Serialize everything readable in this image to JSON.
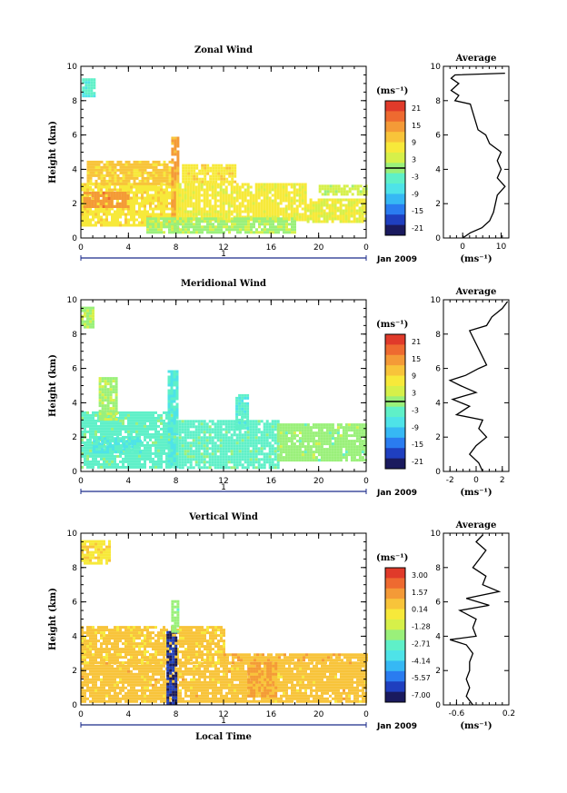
{
  "panels": [
    {
      "id": "zonal",
      "title": "Zonal Wind",
      "ylabel": "Height (km)",
      "xticks": [
        "0",
        "4",
        "8",
        "12",
        "16",
        "20",
        "0"
      ],
      "yticks": [
        "0",
        "2",
        "4",
        "6",
        "8",
        "10"
      ],
      "date_tick": "1",
      "date_label": "Jan 2009",
      "unit": "(ms⁻¹)",
      "colorbar_ticks": [
        "21",
        "15",
        "9",
        "3",
        "-3",
        "-9",
        "-15",
        "-21"
      ],
      "avg_title": "Average",
      "avg_xticks": [
        "0",
        "10"
      ],
      "avg_xlabel": "(ms⁻¹)",
      "avg_yticks": [
        "0",
        "2",
        "4",
        "6",
        "8",
        "10"
      ]
    },
    {
      "id": "meridional",
      "title": "Meridional Wind",
      "ylabel": "Height (km)",
      "xticks": [
        "0",
        "4",
        "8",
        "12",
        "16",
        "20",
        "0"
      ],
      "yticks": [
        "0",
        "2",
        "4",
        "6",
        "8",
        "10"
      ],
      "date_tick": "1",
      "date_label": "Jan 2009",
      "unit": "(ms⁻¹)",
      "colorbar_ticks": [
        "21",
        "15",
        "9",
        "3",
        "-3",
        "-9",
        "-15",
        "-21"
      ],
      "avg_title": "Average",
      "avg_xticks": [
        "-2",
        "0",
        "2"
      ],
      "avg_xlabel": "(ms⁻¹)",
      "avg_yticks": [
        "0",
        "2",
        "4",
        "6",
        "8",
        "10"
      ]
    },
    {
      "id": "vertical",
      "title": "Vertical Wind",
      "ylabel": "Height (km)",
      "xticks": [
        "0",
        "4",
        "8",
        "12",
        "16",
        "20",
        "0"
      ],
      "yticks": [
        "0",
        "2",
        "4",
        "6",
        "8",
        "10"
      ],
      "date_tick": "1",
      "date_label": "Jan 2009",
      "xlabel": "Local Time",
      "unit": "(ms⁻¹)",
      "colorbar_ticks": [
        "3.00",
        "1.57",
        "0.14",
        "-1.28",
        "-2.71",
        "-4.14",
        "-5.57",
        "-7.00"
      ],
      "avg_title": "Average",
      "avg_xticks": [
        "-0.6",
        "0.2"
      ],
      "avg_xlabel": "(ms⁻¹)",
      "avg_yticks": [
        "0",
        "2",
        "4",
        "6",
        "8",
        "10"
      ]
    }
  ],
  "colormap": [
    "#1a1a5e",
    "#1f3fbf",
    "#2a7cf0",
    "#36b8f4",
    "#4ee3e8",
    "#5ff0c8",
    "#9af07a",
    "#d6f04a",
    "#f7e93a",
    "#f8c43a",
    "#f49a37",
    "#ee6a30",
    "#e03a2a"
  ],
  "chart_data": [
    {
      "type": "heatmap",
      "title": "Zonal Wind",
      "xlabel": "",
      "ylabel": "Height (km)",
      "xlim": [
        0,
        24
      ],
      "ylim": [
        0,
        10
      ],
      "colorbar_range": [
        -21,
        21
      ],
      "contour_level": 0,
      "regions": [
        {
          "x": [
            0.1,
            1.2
          ],
          "y": [
            8.3,
            9.3
          ],
          "value": -4
        },
        {
          "x": [
            0.0,
            8.0
          ],
          "y": [
            0.8,
            3.2
          ],
          "value": 7
        },
        {
          "x": [
            0.2,
            4.0
          ],
          "y": [
            1.8,
            2.7
          ],
          "value": 13
        },
        {
          "x": [
            0.5,
            7.5
          ],
          "y": [
            3.2,
            4.5
          ],
          "value": 9
        },
        {
          "x": [
            7.6,
            8.2
          ],
          "y": [
            0.4,
            5.9
          ],
          "value": 12
        },
        {
          "x": [
            8.0,
            19.0
          ],
          "y": [
            1.0,
            3.2
          ],
          "value": 6
        },
        {
          "x": [
            5.5,
            18.0
          ],
          "y": [
            0.3,
            1.2
          ],
          "value": 1
        },
        {
          "x": [
            19.0,
            24.0
          ],
          "y": [
            1.0,
            2.3
          ],
          "value": 5
        },
        {
          "x": [
            8.5,
            13.0
          ],
          "y": [
            3.2,
            4.3
          ],
          "value": 7
        },
        {
          "x": [
            20.0,
            24.0
          ],
          "y": [
            2.5,
            3.1
          ],
          "value": 3
        }
      ],
      "average_profile": {
        "xlim": [
          -5,
          12
        ],
        "height": [
          0.0,
          0.3,
          0.6,
          1.0,
          1.5,
          2.0,
          2.5,
          3.0,
          3.5,
          4.0,
          4.5,
          5.0,
          5.5,
          6.0,
          6.3,
          7.8,
          8.0,
          8.3,
          8.6,
          9.0,
          9.3,
          9.5,
          9.6
        ],
        "value": [
          0,
          2,
          5,
          7,
          8,
          8.5,
          9,
          11,
          9,
          10,
          9,
          10,
          7,
          6,
          4,
          2,
          -2,
          -1,
          -3,
          -1,
          -3,
          -2,
          11
        ]
      }
    },
    {
      "type": "heatmap",
      "title": "Meridional Wind",
      "xlabel": "",
      "ylabel": "Height (km)",
      "xlim": [
        0,
        24
      ],
      "ylim": [
        0,
        10
      ],
      "colorbar_range": [
        -21,
        21
      ],
      "contour_level": 0,
      "regions": [
        {
          "x": [
            0.0,
            1.0
          ],
          "y": [
            8.4,
            9.6
          ],
          "value": 1
        },
        {
          "x": [
            0.0,
            8.0
          ],
          "y": [
            0.3,
            3.5
          ],
          "value": -3
        },
        {
          "x": [
            1.5,
            3.0
          ],
          "y": [
            3.0,
            5.5
          ],
          "value": 1
        },
        {
          "x": [
            7.3,
            8.1
          ],
          "y": [
            0.2,
            5.9
          ],
          "value": -5
        },
        {
          "x": [
            8.0,
            16.5
          ],
          "y": [
            0.3,
            3.0
          ],
          "value": -3
        },
        {
          "x": [
            13.0,
            14.0
          ],
          "y": [
            2.5,
            4.5
          ],
          "value": -4
        },
        {
          "x": [
            16.5,
            24.0
          ],
          "y": [
            0.6,
            2.8
          ],
          "value": 0
        },
        {
          "x": [
            1.0,
            5.0
          ],
          "y": [
            1.2,
            2.0
          ],
          "value": -5
        }
      ],
      "average_profile": {
        "xlim": [
          -2.5,
          2.5
        ],
        "height": [
          0.0,
          0.5,
          1.0,
          1.5,
          2.0,
          2.5,
          3.0,
          3.3,
          3.8,
          4.2,
          4.6,
          5.0,
          5.3,
          5.6,
          6.0,
          6.2,
          8.2,
          8.5,
          9.0,
          9.5,
          9.9
        ],
        "value": [
          0.5,
          0.2,
          -0.5,
          0.0,
          0.8,
          0.2,
          0.5,
          -1.5,
          -0.5,
          -1.8,
          0.0,
          -1.2,
          -2.0,
          -0.8,
          0.2,
          0.8,
          -0.5,
          0.8,
          1.2,
          2.0,
          2.4
        ]
      }
    },
    {
      "type": "heatmap",
      "title": "Vertical Wind",
      "xlabel": "Local Time",
      "ylabel": "Height (km)",
      "xlim": [
        0,
        24
      ],
      "ylim": [
        0,
        10
      ],
      "colorbar_range": [
        -7.0,
        3.0
      ],
      "regions": [
        {
          "x": [
            0.0,
            24.0
          ],
          "y": [
            0.2,
            2.5
          ],
          "value": 0.3
        },
        {
          "x": [
            0.0,
            12.0
          ],
          "y": [
            2.5,
            4.6
          ],
          "value": 0.2
        },
        {
          "x": [
            0.0,
            2.5
          ],
          "y": [
            8.2,
            9.6
          ],
          "value": -0.3
        },
        {
          "x": [
            7.2,
            8.1
          ],
          "y": [
            0.1,
            4.3
          ],
          "value": -6.2
        },
        {
          "x": [
            7.6,
            8.1
          ],
          "y": [
            4.3,
            6.1
          ],
          "value": -2.0
        },
        {
          "x": [
            12.0,
            24.0
          ],
          "y": [
            2.5,
            3.0
          ],
          "value": 0.4
        },
        {
          "x": [
            14.0,
            16.5
          ],
          "y": [
            0.5,
            2.5
          ],
          "value": 0.8
        }
      ],
      "average_profile": {
        "xlim": [
          -0.8,
          0.2
        ],
        "height": [
          0.0,
          0.5,
          1.0,
          1.5,
          2.0,
          2.5,
          3.0,
          3.5,
          3.8,
          4.0,
          4.5,
          5.0,
          5.5,
          5.8,
          6.2,
          6.6,
          7.0,
          7.5,
          8.0,
          8.5,
          9.0,
          9.5,
          9.9
        ],
        "value": [
          -0.35,
          -0.45,
          -0.4,
          -0.45,
          -0.4,
          -0.4,
          -0.35,
          -0.45,
          -0.7,
          -0.3,
          -0.35,
          -0.3,
          -0.55,
          -0.1,
          -0.45,
          0.05,
          -0.2,
          -0.15,
          -0.35,
          -0.25,
          -0.15,
          -0.3,
          -0.2
        ]
      }
    }
  ]
}
